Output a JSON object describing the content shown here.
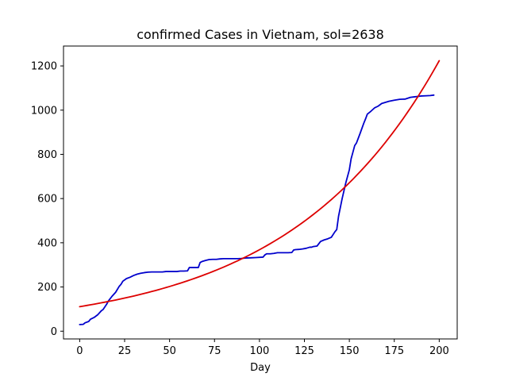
{
  "chart_data": {
    "type": "line",
    "title": "confirmed Cases in Vietnam, sol=2638",
    "xlabel": "Day",
    "ylabel": "",
    "xlim": [
      -9,
      210
    ],
    "ylim": [
      -35,
      1290
    ],
    "xticks": [
      0,
      25,
      50,
      75,
      100,
      125,
      150,
      175,
      200
    ],
    "yticks": [
      0,
      200,
      400,
      600,
      800,
      1000,
      1200
    ],
    "grid": false,
    "series": [
      {
        "color": "#0000cc",
        "x": [
          0,
          2,
          3,
          5,
          6,
          8,
          10,
          12,
          13,
          15,
          16,
          18,
          20,
          22,
          23,
          24,
          26,
          28,
          30,
          32,
          34,
          36,
          38,
          40,
          42,
          44,
          46,
          48,
          50,
          52,
          54,
          56,
          58,
          60,
          61,
          64,
          66,
          67,
          68,
          70,
          72,
          74,
          76,
          78,
          80,
          84,
          88,
          90,
          92,
          95,
          98,
          102,
          103,
          104,
          106,
          108,
          110,
          112,
          114,
          116,
          118,
          119,
          120,
          122,
          124,
          126,
          128,
          129,
          130,
          132,
          134,
          136,
          138,
          140,
          142,
          143,
          144,
          145,
          146,
          148,
          150,
          151,
          152,
          153,
          154,
          156,
          158,
          159,
          160,
          162,
          164,
          166,
          168,
          170,
          172,
          175,
          178,
          181,
          184,
          186,
          188,
          190,
          193,
          195,
          197
        ],
        "y": [
          30,
          31,
          38,
          44,
          54,
          62,
          74,
          92,
          98,
          122,
          137,
          158,
          176,
          203,
          212,
          226,
          238,
          244,
          252,
          258,
          262,
          265,
          267,
          268,
          268,
          268,
          268,
          270,
          270,
          270,
          270,
          272,
          272,
          273,
          288,
          288,
          288,
          311,
          315,
          320,
          324,
          325,
          325,
          327,
          328,
          328,
          328,
          329,
          331,
          332,
          333,
          335,
          345,
          350,
          350,
          352,
          355,
          355,
          355,
          355,
          356,
          367,
          369,
          370,
          372,
          375,
          380,
          380,
          383,
          385,
          406,
          413,
          418,
          425,
          450,
          460,
          520,
          560,
          600,
          670,
          730,
          780,
          810,
          840,
          852,
          895,
          940,
          960,
          982,
          995,
          1010,
          1018,
          1030,
          1035,
          1040,
          1045,
          1049,
          1050,
          1058,
          1060,
          1062,
          1064,
          1065,
          1066,
          1068
        ]
      },
      {
        "color": "#dd0000",
        "model": "exponential",
        "a": 111,
        "b": 0.012
      }
    ]
  }
}
